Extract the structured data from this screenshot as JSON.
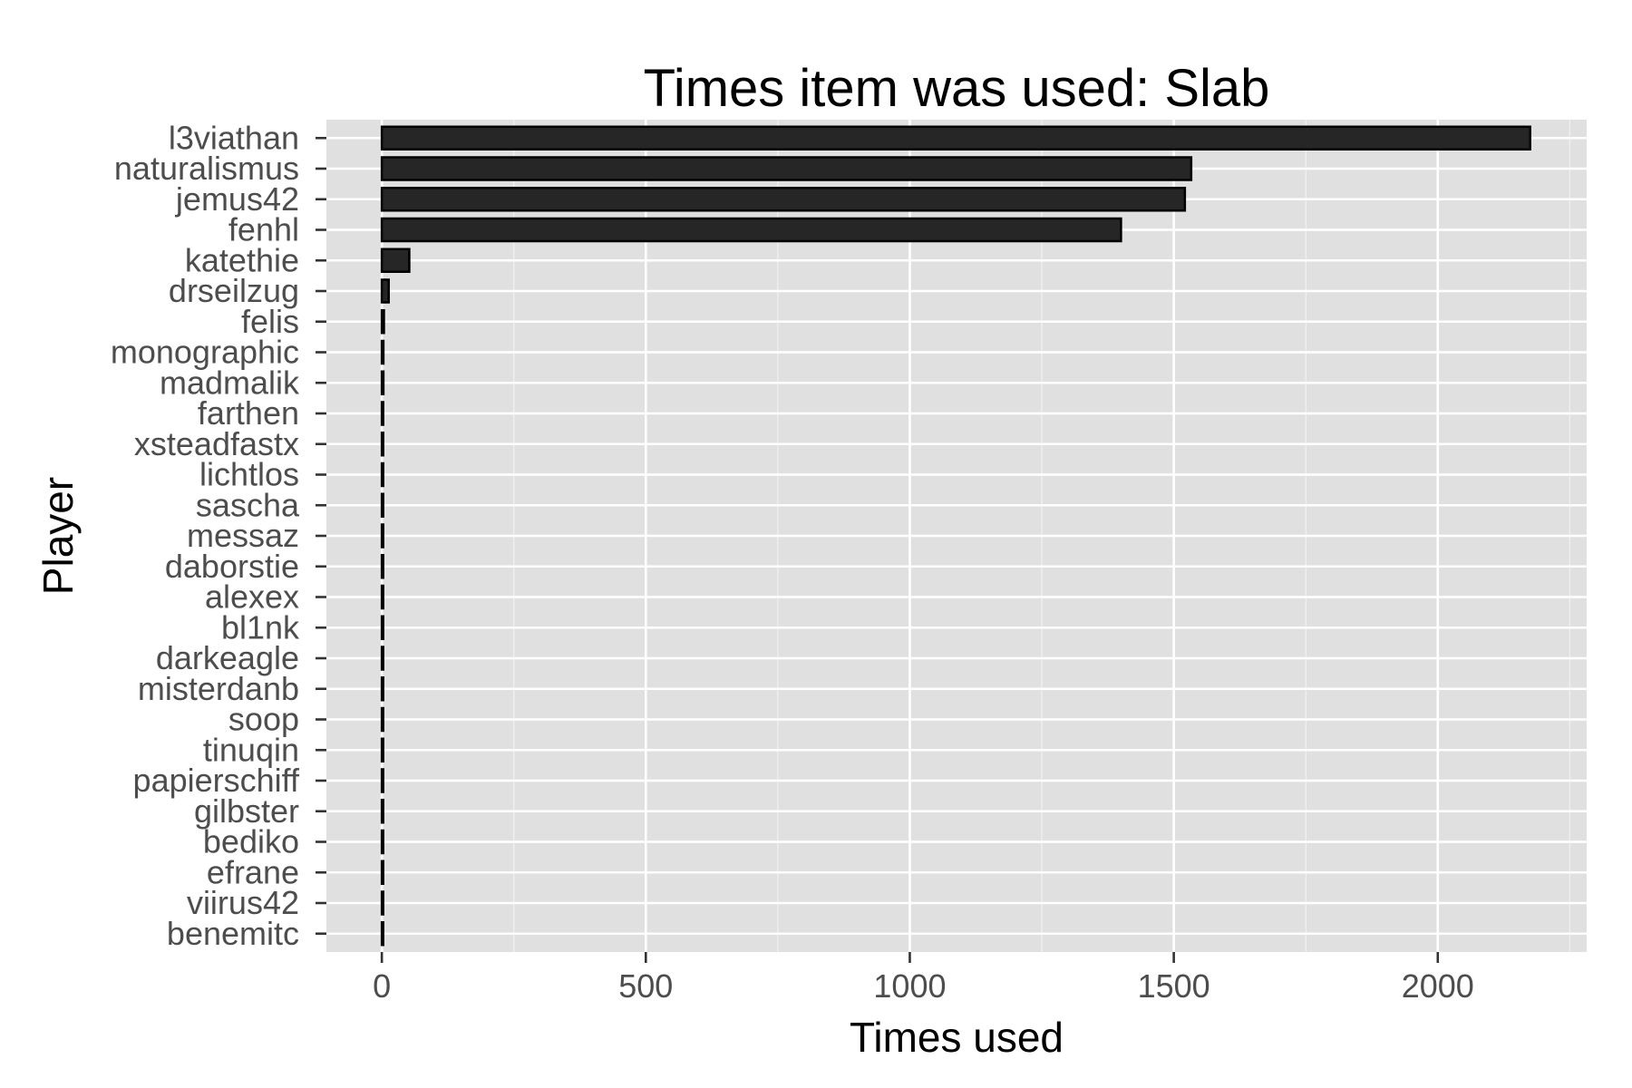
{
  "chart_data": {
    "type": "bar",
    "orientation": "horizontal",
    "title": "Times item was used: Slab",
    "xlabel": "Times used",
    "ylabel": "Player",
    "categories": [
      "l3viathan",
      "naturalismus",
      "jemus42",
      "fenhl",
      "katethie",
      "drseilzug",
      "felis",
      "monographic",
      "madmalik",
      "farthen",
      "xsteadfastx",
      "lichtlos",
      "sascha",
      "messaz",
      "daborstie",
      "alexex",
      "bl1nk",
      "darkeagle",
      "misterdanb",
      "soop",
      "tinuqin",
      "papierschiff",
      "gilbster",
      "bediko",
      "efrane",
      "viirus42",
      "benemitc"
    ],
    "values": [
      2175,
      1533,
      1521,
      1400,
      52,
      13,
      4,
      3,
      3,
      2,
      2,
      2,
      1,
      1,
      1,
      1,
      1,
      1,
      1,
      1,
      1,
      1,
      1,
      1,
      1,
      1,
      1
    ],
    "xlim": [
      -105,
      2282
    ],
    "xticks": [
      0,
      500,
      1000,
      1500,
      2000
    ],
    "xtick_labels": [
      "0",
      "500",
      "1000",
      "1500",
      "2000"
    ],
    "grid": true,
    "legend": "none",
    "colors": {
      "bar_fill": "#262626",
      "bar_stroke": "#000000",
      "panel": "#e0e0e0",
      "grid": "#ffffff",
      "tick_label": "#4d4d4d"
    }
  }
}
